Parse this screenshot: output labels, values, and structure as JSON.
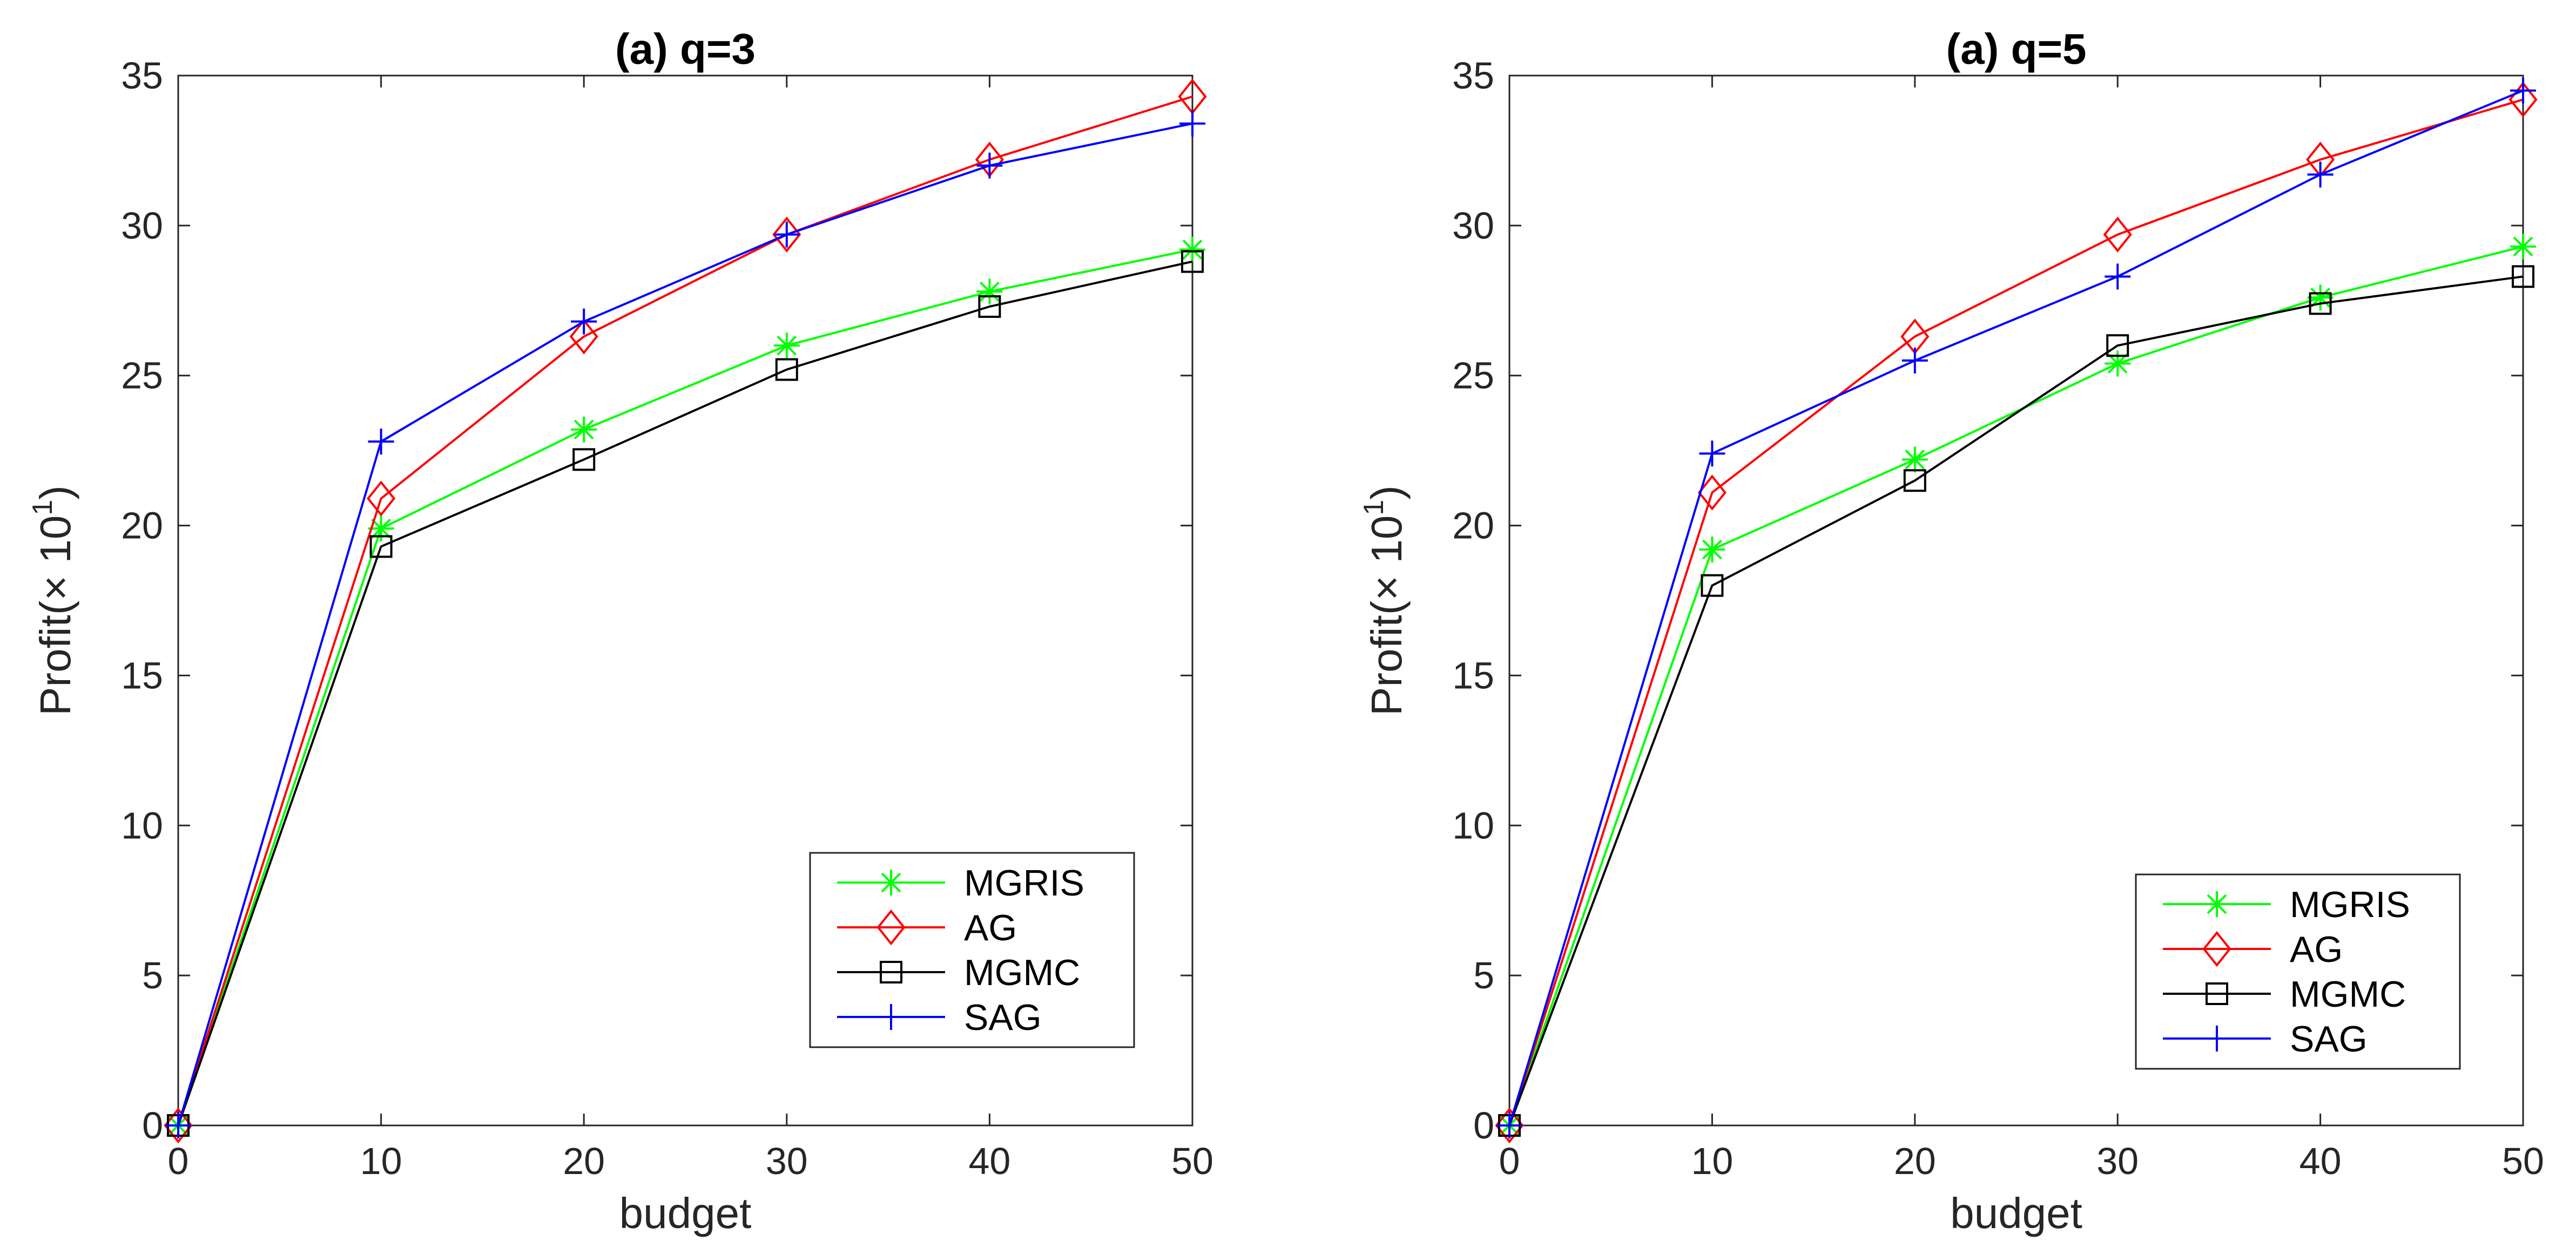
{
  "chart_data": [
    {
      "type": "line",
      "title": "(a) q=3",
      "xlabel": "budget",
      "ylabel": "Profit(× 10",
      "ylabel_sup": "1",
      "ylabel_suffix": ")",
      "x": [
        0,
        10,
        20,
        30,
        40,
        50
      ],
      "xlim": [
        0,
        50
      ],
      "ylim": [
        0,
        35
      ],
      "xticks": [
        "0",
        "10",
        "20",
        "30",
        "40",
        "50"
      ],
      "yticks": [
        "0",
        "5",
        "10",
        "15",
        "20",
        "25",
        "30",
        "35"
      ],
      "legend_position": "bottom-right",
      "series": [
        {
          "name": "MGRIS",
          "color": "#00ff00",
          "marker": "asterisk",
          "values": [
            0,
            19.9,
            23.2,
            26.0,
            27.8,
            29.2
          ]
        },
        {
          "name": "AG",
          "color": "#ff0000",
          "marker": "diamond",
          "values": [
            0,
            20.9,
            26.3,
            29.7,
            32.2,
            34.3
          ]
        },
        {
          "name": "MGMC",
          "color": "#000000",
          "marker": "square",
          "values": [
            0,
            19.3,
            22.2,
            25.2,
            27.3,
            28.8
          ]
        },
        {
          "name": "SAG",
          "color": "#0000ff",
          "marker": "plus",
          "values": [
            0,
            22.8,
            26.8,
            29.7,
            32.0,
            33.4
          ]
        }
      ]
    },
    {
      "type": "line",
      "title": "(a) q=5",
      "xlabel": "budget",
      "ylabel": "Profit(× 10",
      "ylabel_sup": "1",
      "ylabel_suffix": ")",
      "x": [
        0,
        10,
        20,
        30,
        40,
        50
      ],
      "xlim": [
        0,
        50
      ],
      "ylim": [
        0,
        35
      ],
      "xticks": [
        "0",
        "10",
        "20",
        "30",
        "40",
        "50"
      ],
      "yticks": [
        "0",
        "5",
        "10",
        "15",
        "20",
        "25",
        "30",
        "35"
      ],
      "legend_position": "bottom-right",
      "series": [
        {
          "name": "MGRIS",
          "color": "#00ff00",
          "marker": "asterisk",
          "values": [
            0,
            19.2,
            22.2,
            25.4,
            27.6,
            29.3
          ]
        },
        {
          "name": "AG",
          "color": "#ff0000",
          "marker": "diamond",
          "values": [
            0,
            21.1,
            26.3,
            29.7,
            32.2,
            34.2
          ]
        },
        {
          "name": "MGMC",
          "color": "#000000",
          "marker": "square",
          "values": [
            0,
            18.0,
            21.5,
            26.0,
            27.4,
            28.3
          ]
        },
        {
          "name": "SAG",
          "color": "#0000ff",
          "marker": "plus",
          "values": [
            0,
            22.4,
            25.5,
            28.3,
            31.7,
            34.5
          ]
        }
      ]
    }
  ]
}
